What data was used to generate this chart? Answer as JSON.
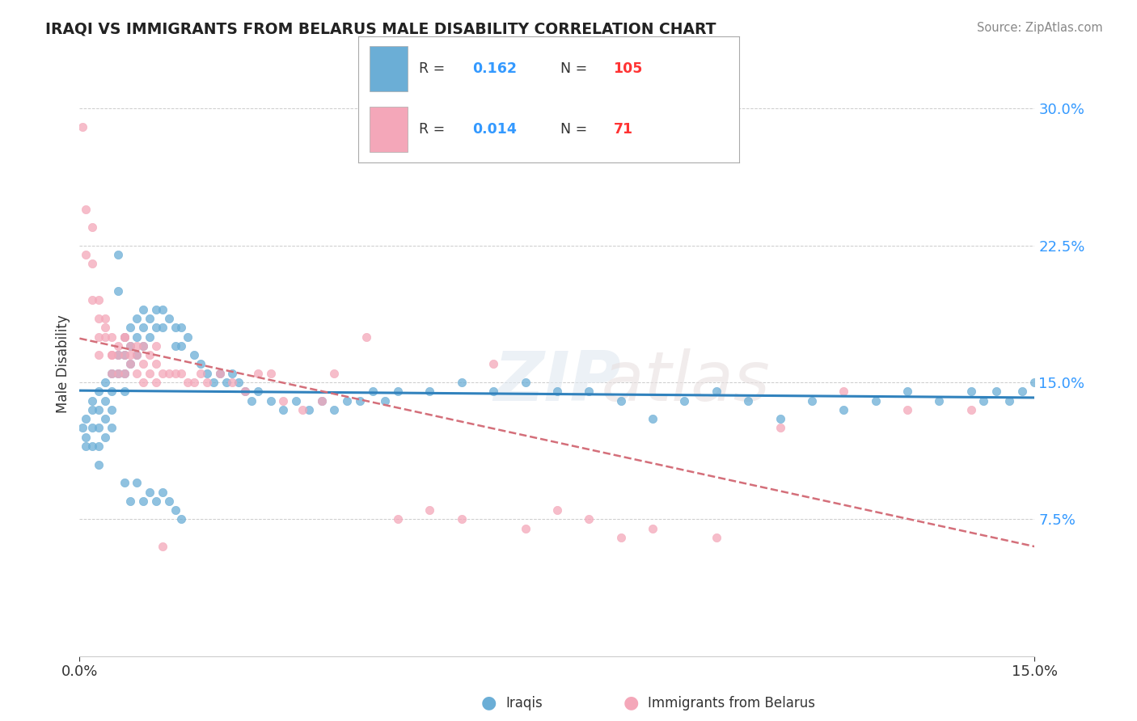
{
  "title": "IRAQI VS IMMIGRANTS FROM BELARUS MALE DISABILITY CORRELATION CHART",
  "source": "Source: ZipAtlas.com",
  "ylabel": "Male Disability",
  "xlim": [
    0.0,
    0.15
  ],
  "ylim": [
    0.0,
    0.32
  ],
  "watermark": "ZIPatlas",
  "iraqis_color": "#6baed6",
  "belarus_color": "#f4a7b9",
  "iraqis_line_color": "#3182bd",
  "belarus_line_color": "#d46f7a",
  "background_color": "#ffffff",
  "grid_color": "#cccccc",
  "iraqis_R": "0.162",
  "iraqis_N": "105",
  "belarus_R": "0.014",
  "belarus_N": "71",
  "iraqis_x": [
    0.0005,
    0.001,
    0.001,
    0.001,
    0.002,
    0.002,
    0.002,
    0.002,
    0.003,
    0.003,
    0.003,
    0.003,
    0.003,
    0.004,
    0.004,
    0.004,
    0.004,
    0.005,
    0.005,
    0.005,
    0.005,
    0.006,
    0.006,
    0.006,
    0.006,
    0.007,
    0.007,
    0.007,
    0.007,
    0.008,
    0.008,
    0.008,
    0.009,
    0.009,
    0.009,
    0.01,
    0.01,
    0.01,
    0.011,
    0.011,
    0.012,
    0.012,
    0.013,
    0.013,
    0.014,
    0.015,
    0.015,
    0.016,
    0.016,
    0.017,
    0.018,
    0.019,
    0.02,
    0.021,
    0.022,
    0.023,
    0.024,
    0.025,
    0.026,
    0.027,
    0.028,
    0.03,
    0.032,
    0.034,
    0.036,
    0.038,
    0.04,
    0.042,
    0.044,
    0.046,
    0.048,
    0.05,
    0.055,
    0.06,
    0.065,
    0.07,
    0.075,
    0.08,
    0.085,
    0.09,
    0.095,
    0.1,
    0.105,
    0.11,
    0.115,
    0.12,
    0.125,
    0.13,
    0.135,
    0.14,
    0.142,
    0.144,
    0.146,
    0.148,
    0.15,
    0.007,
    0.008,
    0.009,
    0.01,
    0.011,
    0.012,
    0.013,
    0.014,
    0.015,
    0.016
  ],
  "iraqis_y": [
    0.125,
    0.13,
    0.12,
    0.115,
    0.14,
    0.135,
    0.125,
    0.115,
    0.145,
    0.135,
    0.125,
    0.115,
    0.105,
    0.15,
    0.14,
    0.13,
    0.12,
    0.155,
    0.145,
    0.135,
    0.125,
    0.22,
    0.2,
    0.165,
    0.155,
    0.175,
    0.165,
    0.155,
    0.145,
    0.18,
    0.17,
    0.16,
    0.185,
    0.175,
    0.165,
    0.19,
    0.18,
    0.17,
    0.185,
    0.175,
    0.19,
    0.18,
    0.19,
    0.18,
    0.185,
    0.18,
    0.17,
    0.18,
    0.17,
    0.175,
    0.165,
    0.16,
    0.155,
    0.15,
    0.155,
    0.15,
    0.155,
    0.15,
    0.145,
    0.14,
    0.145,
    0.14,
    0.135,
    0.14,
    0.135,
    0.14,
    0.135,
    0.14,
    0.14,
    0.145,
    0.14,
    0.145,
    0.145,
    0.15,
    0.145,
    0.15,
    0.145,
    0.145,
    0.14,
    0.13,
    0.14,
    0.145,
    0.14,
    0.13,
    0.14,
    0.135,
    0.14,
    0.145,
    0.14,
    0.145,
    0.14,
    0.145,
    0.14,
    0.145,
    0.15,
    0.095,
    0.085,
    0.095,
    0.085,
    0.09,
    0.085,
    0.09,
    0.085,
    0.08,
    0.075
  ],
  "belarus_x": [
    0.0005,
    0.001,
    0.001,
    0.002,
    0.002,
    0.002,
    0.003,
    0.003,
    0.003,
    0.004,
    0.004,
    0.005,
    0.005,
    0.005,
    0.006,
    0.006,
    0.007,
    0.007,
    0.007,
    0.008,
    0.008,
    0.009,
    0.009,
    0.01,
    0.01,
    0.011,
    0.012,
    0.012,
    0.013,
    0.014,
    0.015,
    0.016,
    0.017,
    0.018,
    0.019,
    0.02,
    0.022,
    0.024,
    0.026,
    0.028,
    0.03,
    0.032,
    0.035,
    0.038,
    0.04,
    0.045,
    0.05,
    0.055,
    0.06,
    0.065,
    0.07,
    0.075,
    0.08,
    0.085,
    0.09,
    0.1,
    0.11,
    0.12,
    0.13,
    0.14,
    0.003,
    0.004,
    0.005,
    0.006,
    0.007,
    0.008,
    0.009,
    0.01,
    0.011,
    0.012,
    0.013
  ],
  "belarus_y": [
    0.29,
    0.245,
    0.22,
    0.235,
    0.215,
    0.195,
    0.195,
    0.185,
    0.175,
    0.185,
    0.175,
    0.175,
    0.165,
    0.155,
    0.165,
    0.155,
    0.175,
    0.165,
    0.155,
    0.17,
    0.16,
    0.165,
    0.155,
    0.16,
    0.15,
    0.155,
    0.16,
    0.15,
    0.155,
    0.155,
    0.155,
    0.155,
    0.15,
    0.15,
    0.155,
    0.15,
    0.155,
    0.15,
    0.145,
    0.155,
    0.155,
    0.14,
    0.135,
    0.14,
    0.155,
    0.175,
    0.075,
    0.08,
    0.075,
    0.16,
    0.07,
    0.08,
    0.075,
    0.065,
    0.07,
    0.065,
    0.125,
    0.145,
    0.135,
    0.135,
    0.165,
    0.18,
    0.165,
    0.17,
    0.175,
    0.165,
    0.17,
    0.17,
    0.165,
    0.17,
    0.06
  ]
}
